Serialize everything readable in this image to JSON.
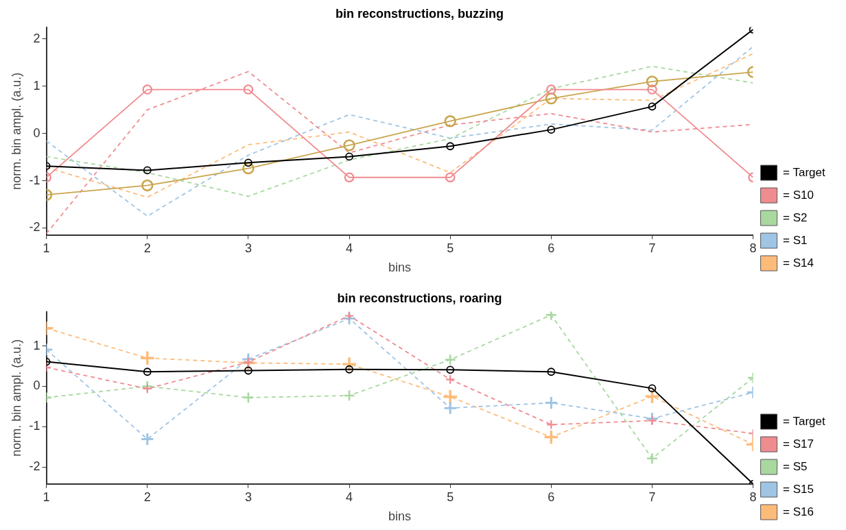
{
  "chart_data": [
    {
      "type": "line",
      "title": "bin reconstructions, buzzing",
      "xlabel": "bins",
      "ylabel": "norm. bin ampl. (a.u.)",
      "x": [
        1,
        2,
        3,
        4,
        5,
        6,
        7,
        8
      ],
      "xlim": [
        1,
        8
      ],
      "xticks": [
        1,
        2,
        3,
        4,
        5,
        6,
        7,
        8
      ],
      "ylim": [
        -2.15,
        2.25
      ],
      "yticks": [
        -2,
        -1,
        0,
        1,
        2
      ],
      "grid": false,
      "legend": "bottom right",
      "series": [
        {
          "name": "= Target",
          "color": "#000000",
          "line_style": "solid",
          "marker": "circle",
          "values": [
            -0.69,
            -0.78,
            -0.62,
            -0.49,
            -0.27,
            0.08,
            0.57,
            2.2
          ]
        },
        {
          "color": "#f08a8f",
          "line_style": "solid",
          "marker": "circle",
          "values": [
            -0.93,
            0.93,
            0.93,
            -0.93,
            -0.93,
            0.93,
            0.93,
            -0.93
          ]
        },
        {
          "color": "#c9a54e",
          "line_style": "solid",
          "marker": "circle",
          "values": [
            -1.3,
            -1.1,
            -0.74,
            -0.25,
            0.26,
            0.74,
            1.1,
            1.3
          ]
        },
        {
          "name": "= S10",
          "color": "#ef8c90",
          "line_style": "dashed",
          "marker": "none",
          "values": [
            -2.12,
            0.5,
            1.31,
            -0.41,
            0.18,
            0.42,
            0.03,
            0.19
          ]
        },
        {
          "name": "= S2",
          "color": "#a8d8a0",
          "line_style": "dashed",
          "marker": "none",
          "values": [
            -0.49,
            -0.83,
            -1.33,
            -0.56,
            -0.11,
            0.95,
            1.42,
            1.07
          ]
        },
        {
          "name": "= S1",
          "color": "#9fc4e4",
          "line_style": "dashed",
          "marker": "none",
          "values": [
            -0.16,
            -1.75,
            -0.46,
            0.4,
            -0.1,
            0.2,
            0.07,
            1.84
          ]
        },
        {
          "name": "= S14",
          "color": "#fdbb7a",
          "line_style": "dashed",
          "marker": "none",
          "values": [
            -0.72,
            -1.35,
            -0.24,
            0.03,
            -0.83,
            0.74,
            0.7,
            1.69
          ]
        }
      ]
    },
    {
      "type": "line",
      "title": "bin reconstructions, roaring",
      "xlabel": "bins",
      "ylabel": "norm. bin ampl. (a.u.)",
      "x": [
        1,
        2,
        3,
        4,
        5,
        6,
        7,
        8
      ],
      "xlim": [
        1,
        8
      ],
      "xticks": [
        1,
        2,
        3,
        4,
        5,
        6,
        7,
        8
      ],
      "ylim": [
        -2.42,
        1.85
      ],
      "yticks": [
        -2,
        -1,
        0,
        1
      ],
      "grid": false,
      "legend": "bottom right",
      "series": [
        {
          "name": "= Target",
          "color": "#000000",
          "line_style": "solid",
          "marker": "circle",
          "values": [
            0.61,
            0.36,
            0.39,
            0.42,
            0.41,
            0.36,
            -0.05,
            -2.42
          ]
        },
        {
          "name": "= S17",
          "color": "#ef8c90",
          "line_style": "dashed",
          "marker": "cross",
          "values": [
            0.47,
            -0.06,
            0.6,
            1.75,
            0.17,
            -0.95,
            -0.85,
            -1.17
          ]
        },
        {
          "name": "= S5",
          "color": "#a8d8a0",
          "line_style": "dashed",
          "marker": "cross",
          "values": [
            -0.28,
            0.0,
            -0.28,
            -0.23,
            0.66,
            1.77,
            -1.79,
            0.21
          ]
        },
        {
          "name": "= S15",
          "color": "#9fc4e4",
          "line_style": "dashed",
          "marker": "cross",
          "values": [
            0.91,
            -1.31,
            0.67,
            1.68,
            -0.54,
            -0.41,
            -0.8,
            -0.15
          ]
        },
        {
          "name": "= S16",
          "color": "#fdbb7a",
          "line_style": "dashed",
          "marker": "cross",
          "values": [
            1.44,
            0.7,
            0.58,
            0.55,
            -0.26,
            -1.26,
            -0.25,
            -1.44
          ]
        }
      ]
    }
  ]
}
